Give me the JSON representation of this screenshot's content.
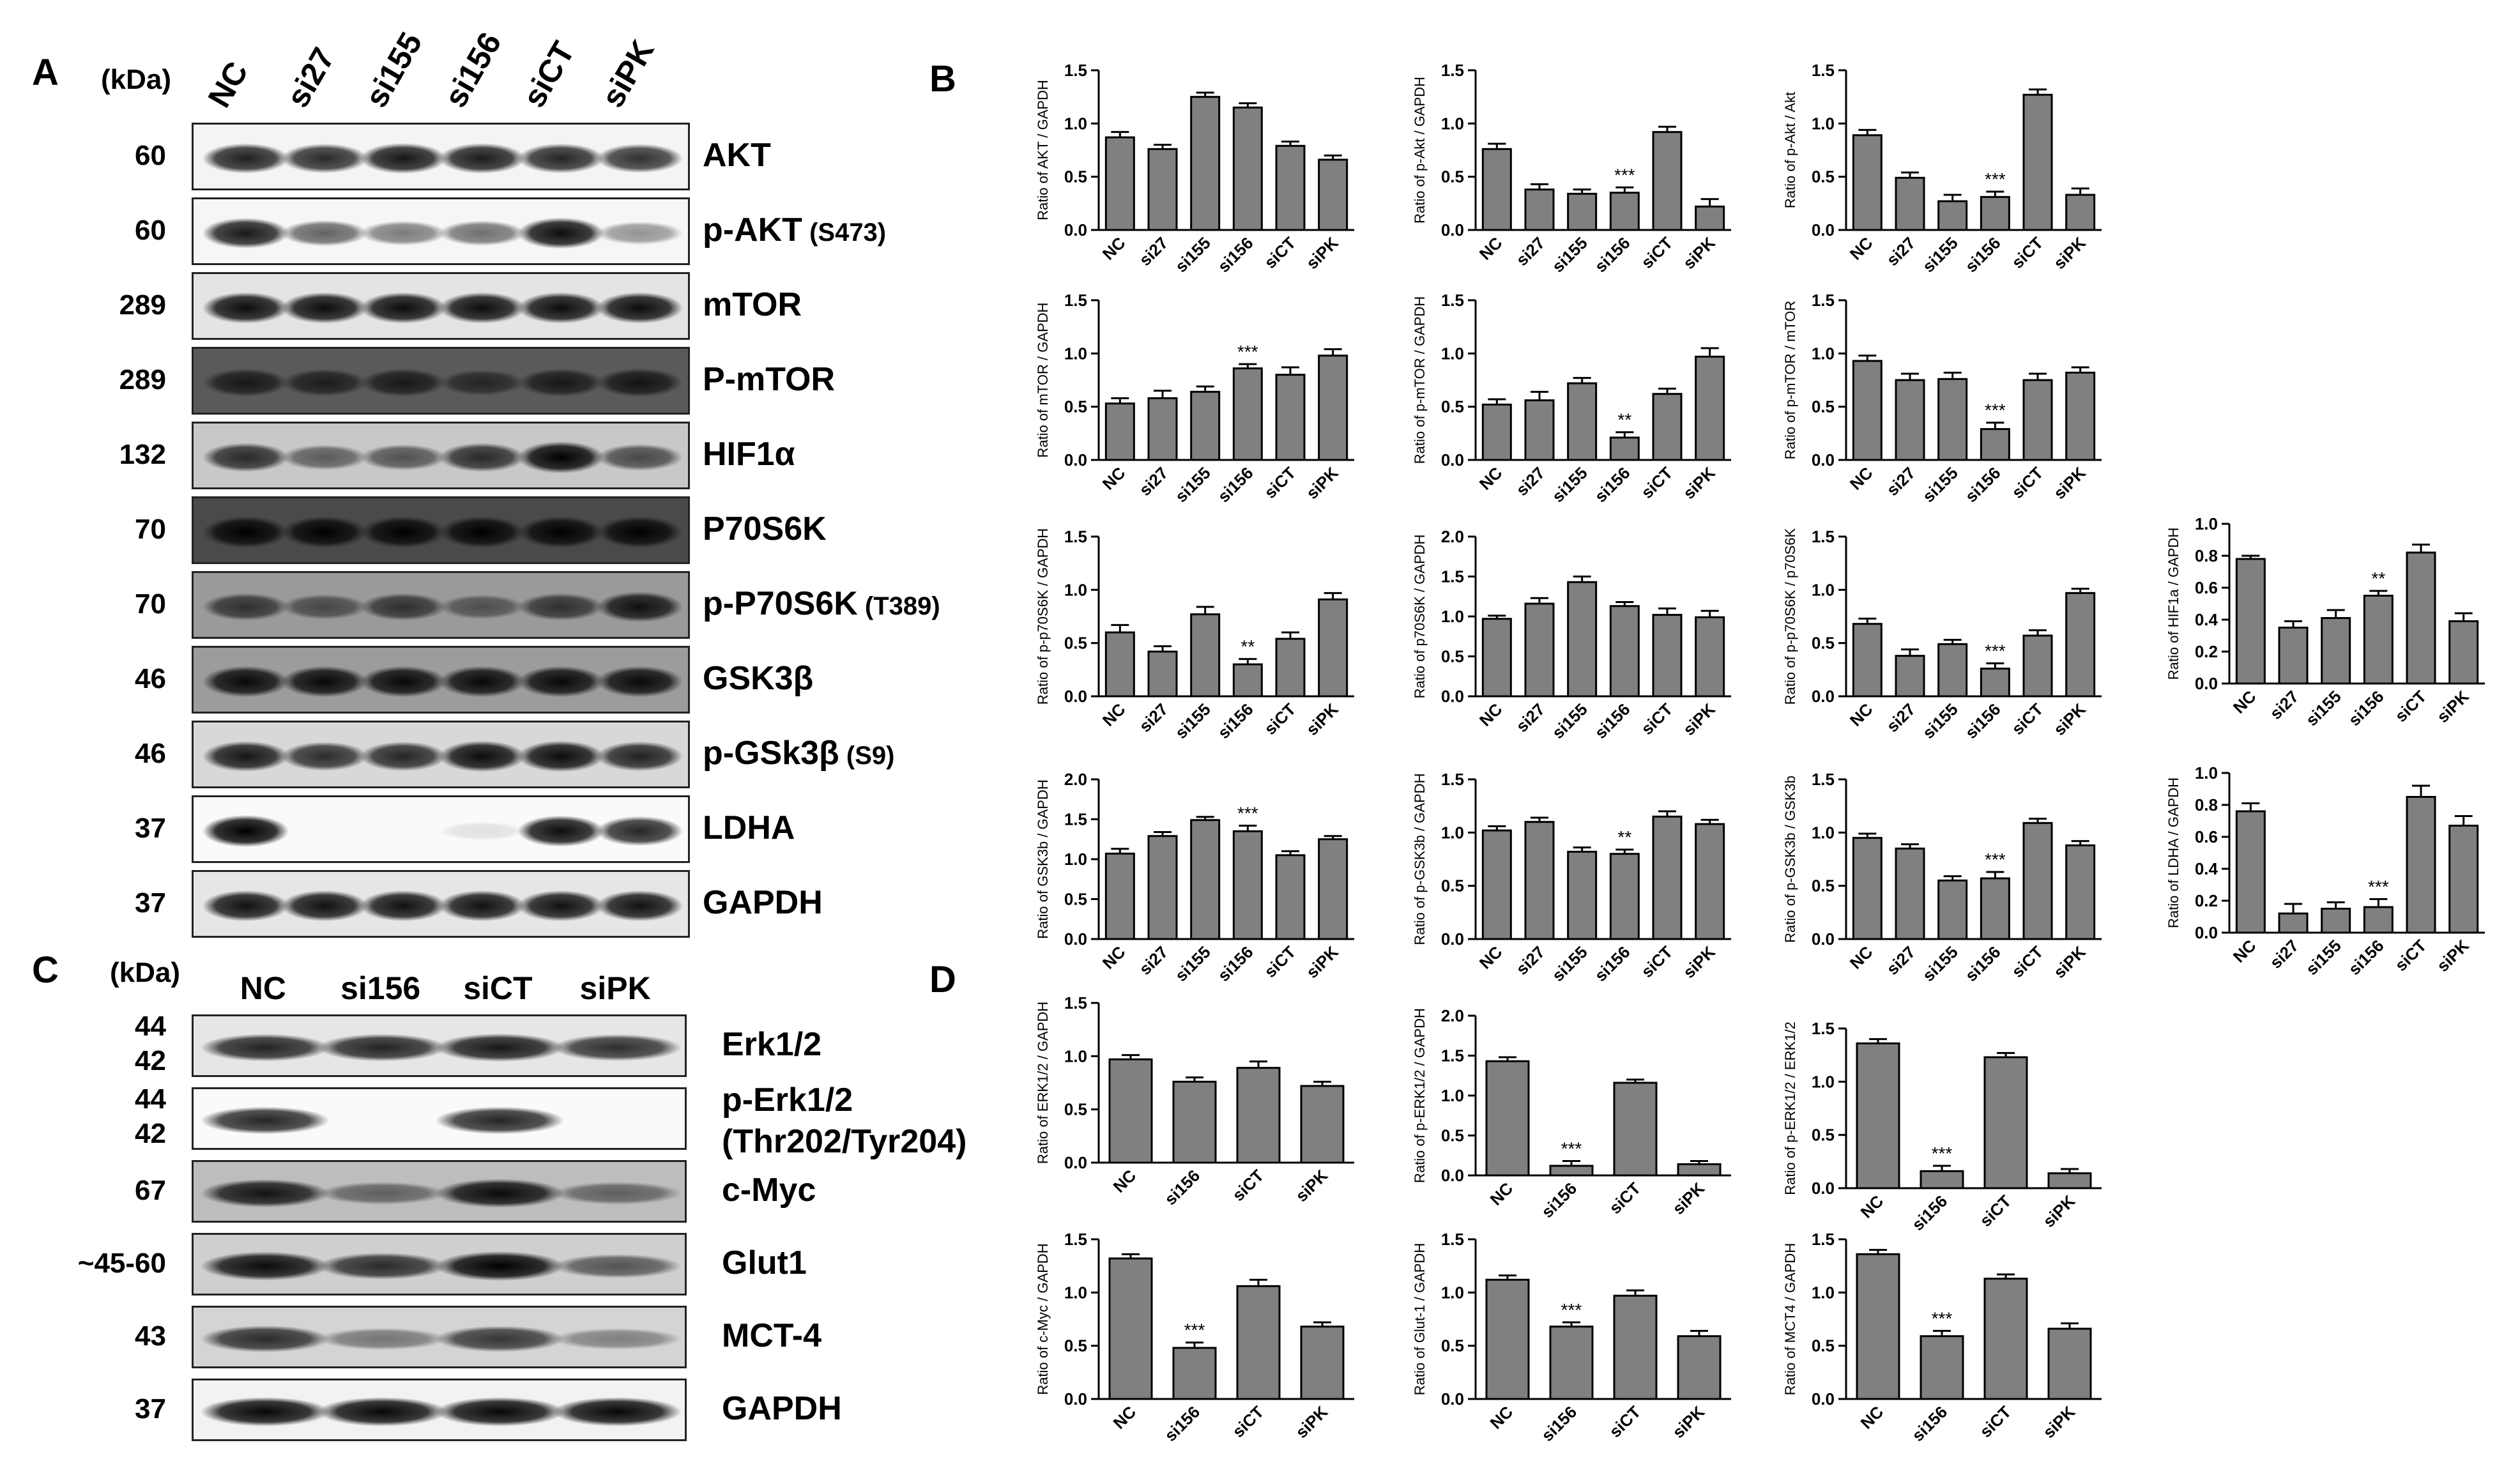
{
  "panels": {
    "A": {
      "letter": "A",
      "kda": "(kDa)",
      "lanes": [
        "NC",
        "si27",
        "si155",
        "si156",
        "siCT",
        "siPK"
      ],
      "rows": [
        {
          "mw": "60",
          "protein": "AKT",
          "suffix": "",
          "bg": "#f4f4f4",
          "band": [
            0.82,
            0.78,
            0.86,
            0.84,
            0.8,
            0.75
          ]
        },
        {
          "mw": "60",
          "protein": "p-AKT",
          "suffix": "(S473)",
          "bg": "#f6f6f6",
          "band": [
            0.85,
            0.55,
            0.45,
            0.5,
            0.9,
            0.35
          ]
        },
        {
          "mw": "289",
          "protein": "mTOR",
          "suffix": "",
          "bg": "#e4e4e4",
          "band": [
            0.9,
            0.9,
            0.9,
            0.9,
            0.9,
            0.9
          ]
        },
        {
          "mw": "289",
          "protein": "P-mTOR",
          "suffix": "",
          "bg": "#5a5a5a",
          "band": [
            0.7,
            0.65,
            0.7,
            0.55,
            0.7,
            0.75
          ]
        },
        {
          "mw": "132",
          "protein": "HIF1α",
          "suffix": "",
          "bg": "#c8c8c8",
          "band": [
            0.75,
            0.5,
            0.55,
            0.75,
            0.95,
            0.6
          ]
        },
        {
          "mw": "70",
          "protein": "P70S6K",
          "suffix": "",
          "bg": "#4a4a4a",
          "band": [
            0.95,
            0.95,
            0.95,
            0.95,
            0.95,
            0.95
          ]
        },
        {
          "mw": "70",
          "protein": "p-P70S6K",
          "suffix": "(T389)",
          "bg": "#9a9a9a",
          "band": [
            0.65,
            0.5,
            0.65,
            0.45,
            0.65,
            0.85
          ]
        },
        {
          "mw": "46",
          "protein": "GSK3β",
          "suffix": "",
          "bg": "#9c9c9c",
          "band": [
            0.9,
            0.9,
            0.9,
            0.9,
            0.9,
            0.9
          ]
        },
        {
          "mw": "46",
          "protein": "p-GSk3β",
          "suffix": "(S9)",
          "bg": "#d8d8d8",
          "band": [
            0.85,
            0.75,
            0.78,
            0.9,
            0.9,
            0.8
          ]
        },
        {
          "mw": "37",
          "protein": "LDHA",
          "suffix": "",
          "bg": "#fafafa",
          "band": [
            0.95,
            0.0,
            0.0,
            0.05,
            0.9,
            0.8
          ]
        },
        {
          "mw": "37",
          "protein": "GAPDH",
          "suffix": "",
          "bg": "#e6e6e6",
          "band": [
            0.88,
            0.88,
            0.88,
            0.88,
            0.88,
            0.88
          ]
        }
      ]
    },
    "B": {
      "letter": "B"
    },
    "C": {
      "letter": "C",
      "kda": "(kDa)",
      "lanes": [
        "NC",
        "si156",
        "siCT",
        "siPK"
      ],
      "rows": [
        {
          "mw": "44\n42",
          "protein": "Erk1/2",
          "protein2": "",
          "bg": "#e6e6e6",
          "band": [
            0.8,
            0.8,
            0.85,
            0.75
          ]
        },
        {
          "mw": "44\n42",
          "protein": "p-Erk1/2",
          "protein2": "(Thr202/Tyr204)",
          "bg": "#fafafa",
          "band": [
            0.8,
            0.0,
            0.8,
            0.0
          ]
        },
        {
          "mw": "67",
          "protein": "c-Myc",
          "protein2": "",
          "bg": "#bdbdbd",
          "band": [
            0.85,
            0.45,
            0.9,
            0.45
          ]
        },
        {
          "mw": "~45-60",
          "protein": "Glut1",
          "protein2": "",
          "bg": "#cfcfcf",
          "band": [
            0.9,
            0.75,
            0.95,
            0.55
          ]
        },
        {
          "mw": "43",
          "protein": "MCT-4",
          "protein2": "",
          "bg": "#d4d4d4",
          "band": [
            0.75,
            0.4,
            0.7,
            0.35
          ]
        },
        {
          "mw": "37",
          "protein": "GAPDH",
          "protein2": "",
          "bg": "#f2f2f2",
          "band": [
            0.92,
            0.92,
            0.92,
            0.92
          ]
        }
      ]
    },
    "D": {
      "letter": "D"
    }
  },
  "bar_color": "#808080",
  "chart_data": [
    {
      "id": "b1",
      "type": "bar",
      "ylabel": "Ratio of AKT / GAPDH",
      "categories": [
        "NC",
        "si27",
        "si155",
        "si156",
        "siCT",
        "siPK"
      ],
      "values": [
        0.87,
        0.76,
        1.25,
        1.15,
        0.79,
        0.66
      ],
      "errors": [
        0.05,
        0.04,
        0.04,
        0.04,
        0.04,
        0.04
      ],
      "sig": [
        "",
        "",
        "",
        "",
        "",
        ""
      ],
      "ylim": [
        0,
        1.5
      ],
      "ticks": [
        "0.0",
        "0.5",
        "1.0",
        "1.5"
      ]
    },
    {
      "id": "b2",
      "type": "bar",
      "ylabel": "Ratio of p-Akt / GAPDH",
      "categories": [
        "NC",
        "si27",
        "si155",
        "si156",
        "siCT",
        "siPK"
      ],
      "values": [
        0.76,
        0.38,
        0.34,
        0.35,
        0.92,
        0.22
      ],
      "errors": [
        0.05,
        0.05,
        0.04,
        0.05,
        0.05,
        0.07
      ],
      "sig": [
        "",
        "",
        "",
        "***",
        "",
        ""
      ],
      "ylim": [
        0,
        1.5
      ],
      "ticks": [
        "0.0",
        "0.5",
        "1.0",
        "1.5"
      ]
    },
    {
      "id": "b3",
      "type": "bar",
      "ylabel": "Ratio of p-Akt / Akt",
      "categories": [
        "NC",
        "si27",
        "si155",
        "si156",
        "siCT",
        "siPK"
      ],
      "values": [
        0.89,
        0.49,
        0.27,
        0.31,
        1.27,
        0.33
      ],
      "errors": [
        0.05,
        0.05,
        0.06,
        0.05,
        0.05,
        0.06
      ],
      "sig": [
        "",
        "",
        "",
        "***",
        "",
        ""
      ],
      "ylim": [
        0,
        1.5
      ],
      "ticks": [
        "0.0",
        "0.5",
        "1.0",
        "1.5"
      ]
    },
    {
      "id": "b4",
      "type": "bar",
      "ylabel": "Ratio of mTOR / GAPDH",
      "categories": [
        "NC",
        "si27",
        "si155",
        "si156",
        "siCT",
        "siPK"
      ],
      "values": [
        0.53,
        0.58,
        0.64,
        0.86,
        0.8,
        0.98
      ],
      "errors": [
        0.05,
        0.07,
        0.05,
        0.04,
        0.07,
        0.06
      ],
      "sig": [
        "",
        "",
        "",
        "***",
        "",
        ""
      ],
      "ylim": [
        0,
        1.5
      ],
      "ticks": [
        "0.0",
        "0.5",
        "1.0",
        "1.5"
      ]
    },
    {
      "id": "b5",
      "type": "bar",
      "ylabel": "Ratio of p-mTOR / GAPDH",
      "categories": [
        "NC",
        "si27",
        "si155",
        "si156",
        "siCT",
        "siPK"
      ],
      "values": [
        0.52,
        0.56,
        0.72,
        0.21,
        0.62,
        0.97
      ],
      "errors": [
        0.05,
        0.08,
        0.05,
        0.05,
        0.05,
        0.08
      ],
      "sig": [
        "",
        "",
        "",
        "**",
        "",
        ""
      ],
      "ylim": [
        0,
        1.5
      ],
      "ticks": [
        "0.0",
        "0.5",
        "1.0",
        "1.5"
      ]
    },
    {
      "id": "b6",
      "type": "bar",
      "ylabel": "Ratio of p-mTOR / mTOR",
      "categories": [
        "NC",
        "si27",
        "si155",
        "si156",
        "siCT",
        "siPK"
      ],
      "values": [
        0.93,
        0.75,
        0.76,
        0.29,
        0.75,
        0.82
      ],
      "errors": [
        0.05,
        0.06,
        0.06,
        0.06,
        0.06,
        0.05
      ],
      "sig": [
        "",
        "",
        "",
        "***",
        "",
        ""
      ],
      "ylim": [
        0,
        1.5
      ],
      "ticks": [
        "0.0",
        "0.5",
        "1.0",
        "1.5"
      ]
    },
    {
      "id": "b7",
      "type": "bar",
      "ylabel": "Ratio of p-p70S6K / GAPDH",
      "categories": [
        "NC",
        "si27",
        "si155",
        "si156",
        "siCT",
        "siPK"
      ],
      "values": [
        0.6,
        0.42,
        0.77,
        0.3,
        0.54,
        0.91
      ],
      "errors": [
        0.07,
        0.05,
        0.07,
        0.05,
        0.06,
        0.06
      ],
      "sig": [
        "",
        "",
        "",
        "**",
        "",
        ""
      ],
      "ylim": [
        0,
        1.5
      ],
      "ticks": [
        "0.0",
        "0.5",
        "1.0",
        "1.5"
      ]
    },
    {
      "id": "b8",
      "type": "bar",
      "ylabel": "Ratio of p70S6K / GAPDH",
      "categories": [
        "NC",
        "si27",
        "si155",
        "si156",
        "siCT",
        "siPK"
      ],
      "values": [
        0.97,
        1.16,
        1.43,
        1.13,
        1.02,
        0.99
      ],
      "errors": [
        0.04,
        0.07,
        0.07,
        0.05,
        0.08,
        0.08
      ],
      "sig": [
        "",
        "",
        "",
        "",
        "",
        ""
      ],
      "ylim": [
        0,
        2.0
      ],
      "ticks": [
        "0.0",
        "0.5",
        "1.0",
        "1.5",
        "2.0"
      ]
    },
    {
      "id": "b9",
      "type": "bar",
      "ylabel": "Ratio of p-p70S6K / p70S6K",
      "categories": [
        "NC",
        "si27",
        "si155",
        "si156",
        "siCT",
        "siPK"
      ],
      "values": [
        0.68,
        0.38,
        0.49,
        0.26,
        0.57,
        0.97
      ],
      "errors": [
        0.05,
        0.06,
        0.04,
        0.05,
        0.05,
        0.04
      ],
      "sig": [
        "",
        "",
        "",
        "***",
        "",
        ""
      ],
      "ylim": [
        0,
        1.5
      ],
      "ticks": [
        "0.0",
        "0.5",
        "1.0",
        "1.5"
      ]
    },
    {
      "id": "b10",
      "type": "bar",
      "ylabel": "Ratio of HIF1a / GAPDH",
      "categories": [
        "NC",
        "si27",
        "si155",
        "si156",
        "siCT",
        "siPK"
      ],
      "values": [
        0.78,
        0.35,
        0.41,
        0.55,
        0.82,
        0.39
      ],
      "errors": [
        0.02,
        0.04,
        0.05,
        0.03,
        0.05,
        0.05
      ],
      "sig": [
        "",
        "",
        "",
        "**",
        "",
        ""
      ],
      "ylim": [
        0,
        1.0
      ],
      "ticks": [
        "0.0",
        "0.2",
        "0.4",
        "0.6",
        "0.8",
        "1.0"
      ]
    },
    {
      "id": "b11",
      "type": "bar",
      "ylabel": "Ratio of GSK3b / GAPDH",
      "categories": [
        "NC",
        "si27",
        "si155",
        "si156",
        "siCT",
        "siPK"
      ],
      "values": [
        1.07,
        1.29,
        1.49,
        1.35,
        1.05,
        1.25
      ],
      "errors": [
        0.06,
        0.05,
        0.04,
        0.07,
        0.05,
        0.04
      ],
      "sig": [
        "",
        "",
        "",
        "***",
        "",
        ""
      ],
      "ylim": [
        0,
        2.0
      ],
      "ticks": [
        "0.0",
        "0.5",
        "1.0",
        "1.5",
        "2.0"
      ]
    },
    {
      "id": "b12",
      "type": "bar",
      "ylabel": "Ratio of p-GSK3b / GAPDH",
      "categories": [
        "NC",
        "si27",
        "si155",
        "si156",
        "siCT",
        "siPK"
      ],
      "values": [
        1.02,
        1.1,
        0.82,
        0.8,
        1.15,
        1.08
      ],
      "errors": [
        0.04,
        0.04,
        0.04,
        0.04,
        0.05,
        0.04
      ],
      "sig": [
        "",
        "",
        "",
        "**",
        "",
        ""
      ],
      "ylim": [
        0,
        1.5
      ],
      "ticks": [
        "0.0",
        "0.5",
        "1.0",
        "1.5"
      ]
    },
    {
      "id": "b13",
      "type": "bar",
      "ylabel": "Ratio of p-GSK3b / GSK3b",
      "categories": [
        "NC",
        "si27",
        "si155",
        "si156",
        "siCT",
        "siPK"
      ],
      "values": [
        0.95,
        0.85,
        0.55,
        0.57,
        1.09,
        0.88
      ],
      "errors": [
        0.04,
        0.04,
        0.04,
        0.06,
        0.04,
        0.04
      ],
      "sig": [
        "",
        "",
        "",
        "***",
        "",
        ""
      ],
      "ylim": [
        0,
        1.5
      ],
      "ticks": [
        "0.0",
        "0.5",
        "1.0",
        "1.5"
      ]
    },
    {
      "id": "b14",
      "type": "bar",
      "ylabel": "Ratio of LDHA / GAPDH",
      "categories": [
        "NC",
        "si27",
        "si155",
        "si156",
        "siCT",
        "siPK"
      ],
      "values": [
        0.76,
        0.12,
        0.15,
        0.16,
        0.85,
        0.67
      ],
      "errors": [
        0.05,
        0.06,
        0.04,
        0.05,
        0.07,
        0.06
      ],
      "sig": [
        "",
        "",
        "",
        "***",
        "",
        ""
      ],
      "ylim": [
        0,
        1.0
      ],
      "ticks": [
        "0.0",
        "0.2",
        "0.4",
        "0.6",
        "0.8",
        "1.0"
      ]
    },
    {
      "id": "d1",
      "type": "bar",
      "ylabel": "Ratio of ERK1/2 / GAPDH",
      "categories": [
        "NC",
        "si156",
        "siCT",
        "siPK"
      ],
      "values": [
        0.97,
        0.76,
        0.89,
        0.72
      ],
      "errors": [
        0.04,
        0.04,
        0.06,
        0.04
      ],
      "sig": [
        "",
        "",
        "",
        ""
      ],
      "ylim": [
        0,
        1.5
      ],
      "ticks": [
        "0.0",
        "0.5",
        "1.0",
        "1.5"
      ]
    },
    {
      "id": "d2",
      "type": "bar",
      "ylabel": "Ratio of p-ERK1/2 / GAPDH",
      "categories": [
        "NC",
        "si156",
        "siCT",
        "siPK"
      ],
      "values": [
        1.43,
        0.12,
        1.16,
        0.14
      ],
      "errors": [
        0.05,
        0.06,
        0.04,
        0.04
      ],
      "sig": [
        "",
        "***",
        "",
        ""
      ],
      "ylim": [
        0,
        2.0
      ],
      "ticks": [
        "0.0",
        "0.5",
        "1.0",
        "1.5",
        "2.0"
      ]
    },
    {
      "id": "d3",
      "type": "bar",
      "ylabel": "Ratio of p-ERK1/2 / ERK1/2",
      "categories": [
        "NC",
        "si156",
        "siCT",
        "siPK"
      ],
      "values": [
        1.36,
        0.16,
        1.23,
        0.14
      ],
      "errors": [
        0.04,
        0.05,
        0.04,
        0.04
      ],
      "sig": [
        "",
        "***",
        "",
        ""
      ],
      "ylim": [
        0,
        1.5
      ],
      "ticks": [
        "0.0",
        "0.5",
        "1.0",
        "1.5"
      ]
    },
    {
      "id": "d4",
      "type": "bar",
      "ylabel": "Ratio of c-Myc / GAPDH",
      "categories": [
        "NC",
        "si156",
        "siCT",
        "siPK"
      ],
      "values": [
        1.32,
        0.48,
        1.06,
        0.68
      ],
      "errors": [
        0.04,
        0.05,
        0.06,
        0.04
      ],
      "sig": [
        "",
        "***",
        "",
        ""
      ],
      "ylim": [
        0,
        1.5
      ],
      "ticks": [
        "0.0",
        "0.5",
        "1.0",
        "1.5"
      ]
    },
    {
      "id": "d5",
      "type": "bar",
      "ylabel": "Ratio of Glut-1 / GAPDH",
      "categories": [
        "NC",
        "si156",
        "siCT",
        "siPK"
      ],
      "values": [
        1.12,
        0.68,
        0.97,
        0.59
      ],
      "errors": [
        0.04,
        0.04,
        0.05,
        0.05
      ],
      "sig": [
        "",
        "***",
        "",
        ""
      ],
      "ylim": [
        0,
        1.5
      ],
      "ticks": [
        "0.0",
        "0.5",
        "1.0",
        "1.5"
      ]
    },
    {
      "id": "d6",
      "type": "bar",
      "ylabel": "Ratio of MCT4 / GAPDH",
      "categories": [
        "NC",
        "si156",
        "siCT",
        "siPK"
      ],
      "values": [
        1.36,
        0.59,
        1.13,
        0.66
      ],
      "errors": [
        0.04,
        0.05,
        0.04,
        0.05
      ],
      "sig": [
        "",
        "***",
        "",
        ""
      ],
      "ylim": [
        0,
        1.5
      ],
      "ticks": [
        "0.0",
        "0.5",
        "1.0",
        "1.5"
      ]
    }
  ]
}
